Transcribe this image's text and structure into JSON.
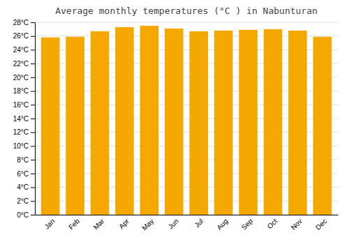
{
  "chart_data": {
    "type": "bar",
    "title": "Average monthly temperatures (°C ) in Nabunturan",
    "categories": [
      "Jan",
      "Feb",
      "Mar",
      "Apr",
      "May",
      "Jun",
      "Jul",
      "Aug",
      "Sep",
      "Oct",
      "Nov",
      "Dec"
    ],
    "values": [
      25.8,
      25.9,
      26.7,
      27.3,
      27.5,
      27.1,
      26.7,
      26.8,
      26.9,
      27.0,
      26.8,
      25.9
    ],
    "color": "#F5A800",
    "ylim": [
      0,
      28
    ],
    "yticks": [
      {
        "value": 0,
        "label": "0°C"
      },
      {
        "value": 2,
        "label": "2°C"
      },
      {
        "value": 4,
        "label": "4°C"
      },
      {
        "value": 6,
        "label": "6°C"
      },
      {
        "value": 8,
        "label": "8°C"
      },
      {
        "value": 10,
        "label": "10°C"
      },
      {
        "value": 12,
        "label": "12°C"
      },
      {
        "value": 14,
        "label": "14°C"
      },
      {
        "value": 16,
        "label": "16°C"
      },
      {
        "value": 18,
        "label": "18°C"
      },
      {
        "value": 20,
        "label": "20°C"
      },
      {
        "value": 22,
        "label": "22°C"
      },
      {
        "value": 24,
        "label": "24°C"
      },
      {
        "value": 26,
        "label": "26°C"
      },
      {
        "value": 28,
        "label": "28°C"
      }
    ],
    "grid": true
  }
}
